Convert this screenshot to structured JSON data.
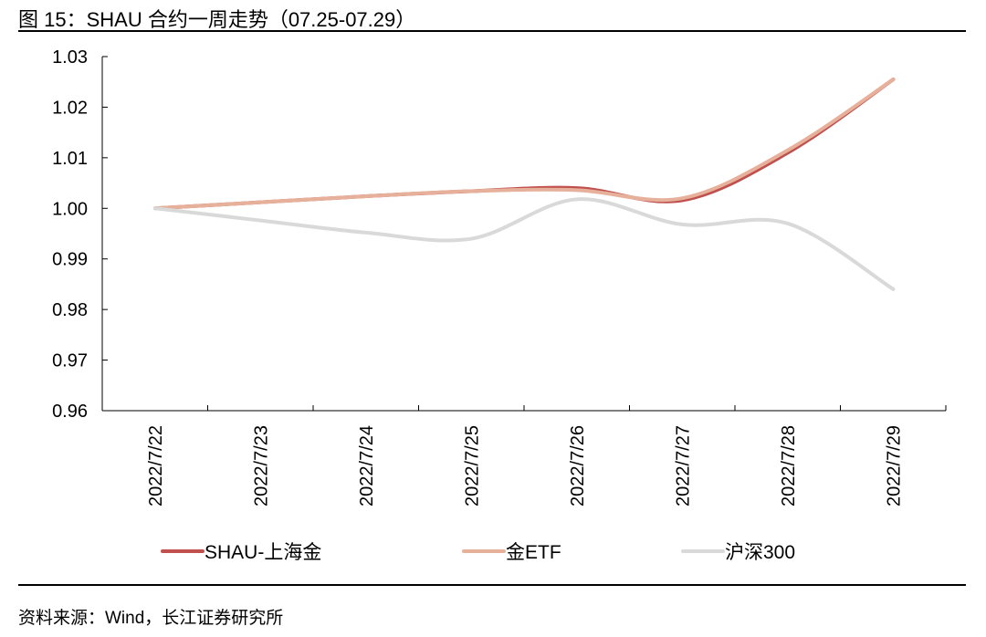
{
  "header": {
    "title": "图 15：SHAU 合约一周走势（07.25-07.29）"
  },
  "footer": {
    "source": "资料来源：Wind，长江证券研究所"
  },
  "chart_data": {
    "type": "line",
    "title": "",
    "xlabel": "",
    "ylabel": "",
    "categories": [
      "2022/7/22",
      "2022/7/23",
      "2022/7/24",
      "2022/7/25",
      "2022/7/26",
      "2022/7/27",
      "2022/7/28",
      "2022/7/29"
    ],
    "ylim": [
      0.96,
      1.03
    ],
    "yticks": [
      "0.96",
      "0.97",
      "0.98",
      "0.99",
      "1.00",
      "1.01",
      "1.02",
      "1.03"
    ],
    "grid": false,
    "legend_position": "bottom",
    "series": [
      {
        "name": "SHAU-上海金",
        "color": "#c0504d",
        "values": [
          1.0,
          1.0012,
          1.0024,
          1.0034,
          1.004,
          1.0016,
          1.011,
          1.0255
        ]
      },
      {
        "name": "金ETF",
        "color": "#e6b09a",
        "values": [
          1.0,
          1.0012,
          1.0024,
          1.0034,
          1.0036,
          1.002,
          1.0115,
          1.0255
        ]
      },
      {
        "name": "沪深300",
        "color": "#d9d9d9",
        "values": [
          1.0,
          0.9976,
          0.9952,
          0.994,
          1.0018,
          0.9968,
          0.997,
          0.984
        ]
      }
    ]
  }
}
